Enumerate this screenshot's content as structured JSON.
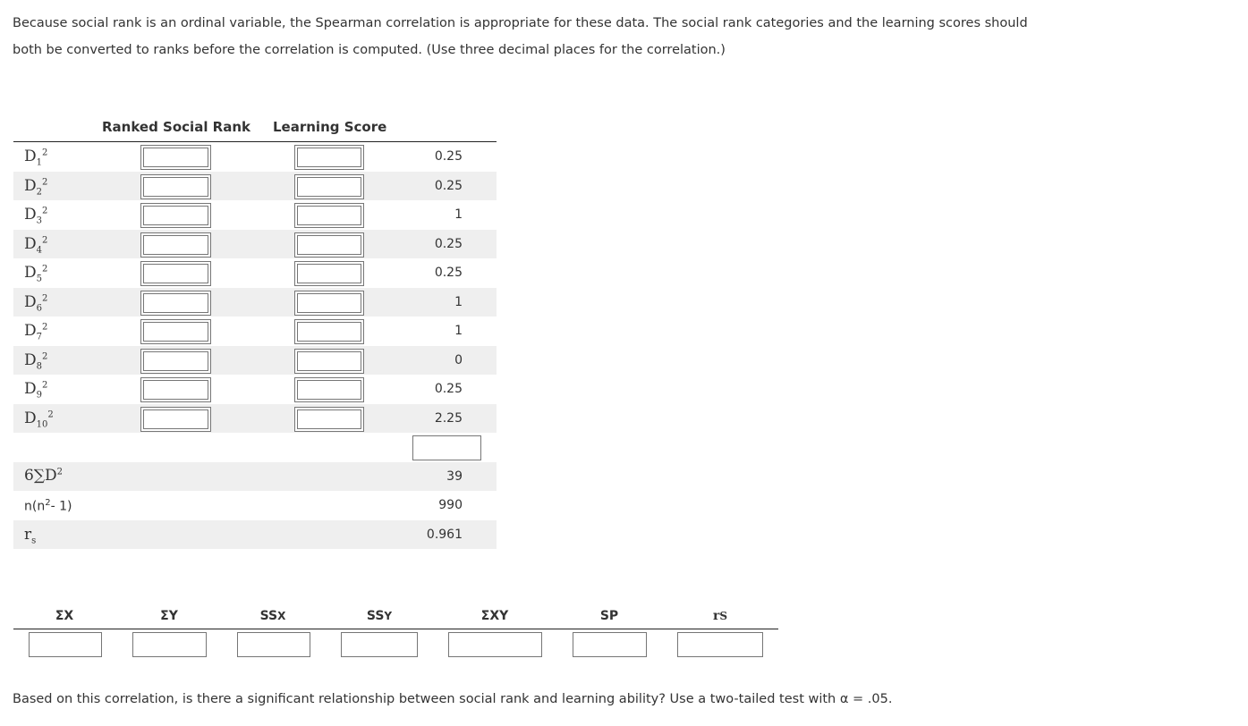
{
  "intro_text": "Because social rank is an ordinal variable, the Spearman correlation is appropriate for these data. The social rank categories and the learning scores should both be converted to ranks before the correlation is computed. (Use three decimal places for the correlation.)",
  "table1": {
    "headers": {
      "ranked_social_rank": "Ranked Social Rank",
      "learning_score": "Learning Score"
    },
    "rows": [
      {
        "sub": "1",
        "value": "0.25"
      },
      {
        "sub": "2",
        "value": "0.25"
      },
      {
        "sub": "3",
        "value": "1"
      },
      {
        "sub": "4",
        "value": "0.25"
      },
      {
        "sub": "5",
        "value": "0.25"
      },
      {
        "sub": "6",
        "value": "1"
      },
      {
        "sub": "7",
        "value": "1"
      },
      {
        "sub": "8",
        "value": "0"
      },
      {
        "sub": "9",
        "value": "0.25"
      },
      {
        "sub": "10",
        "value": "2.25"
      }
    ],
    "six_sum_d2_value": "39",
    "n_term_value": "990",
    "rs_value": "0.961"
  },
  "table2": {
    "headers": {
      "sum_x": "ΣX",
      "sum_y": "ΣY",
      "ss_x_main": "SS",
      "ss_x_sub": "X",
      "ss_y_main": "SS",
      "ss_y_sub": "Y",
      "sum_xy": "ΣXY",
      "sp": "SP",
      "rs_main": "r",
      "rs_sub": "S"
    }
  },
  "footer_text": "Based on this correlation, is there a significant relationship between social rank and learning ability? Use a two-tailed test with α = .05."
}
